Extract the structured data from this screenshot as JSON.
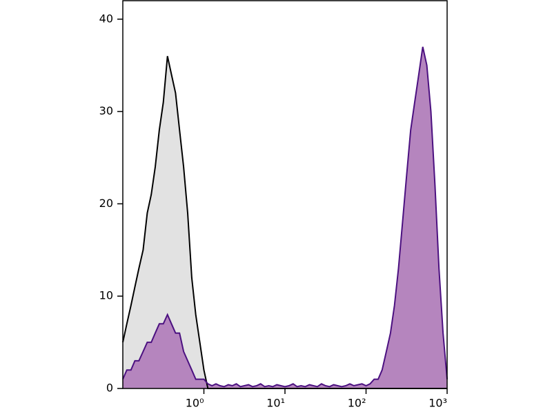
{
  "chart_data": {
    "type": "histogram-line",
    "xscale": "log",
    "xlim": [
      0.1,
      1000
    ],
    "ylim": [
      0,
      42
    ],
    "yticks": [
      0,
      10,
      20,
      30,
      40
    ],
    "xticks": [
      {
        "value": 1,
        "label": "10⁰"
      },
      {
        "value": 10,
        "label": "10¹"
      },
      {
        "value": 100,
        "label": "10²"
      },
      {
        "value": 1000,
        "label": "10³"
      }
    ],
    "x": [
      0.1,
      0.112,
      0.126,
      0.141,
      0.158,
      0.178,
      0.2,
      0.224,
      0.251,
      0.282,
      0.316,
      0.355,
      0.398,
      0.447,
      0.501,
      0.562,
      0.631,
      0.708,
      0.794,
      0.891,
      1,
      1.12,
      1.26,
      1.41,
      1.58,
      1.78,
      2,
      2.24,
      2.51,
      2.82,
      3.16,
      3.55,
      3.98,
      4.47,
      5.01,
      5.62,
      6.31,
      7.08,
      7.94,
      8.91,
      10,
      11.2,
      12.6,
      14.1,
      15.8,
      17.8,
      20,
      22.4,
      25.1,
      28.2,
      31.6,
      35.5,
      39.8,
      44.7,
      50.1,
      56.2,
      63.1,
      70.8,
      79.4,
      89.1,
      100,
      112,
      126,
      141,
      158,
      178,
      200,
      224,
      251,
      282,
      316,
      355,
      398,
      447,
      501,
      562,
      631,
      708,
      794,
      891,
      1000
    ],
    "series": [
      {
        "color": "#000000",
        "fill": "#e2e2e2",
        "values": [
          5,
          7,
          9,
          11,
          13,
          15,
          19,
          21,
          24,
          28,
          31,
          36,
          34,
          32,
          28,
          24,
          19,
          12,
          8,
          5,
          2,
          0,
          0,
          0,
          0,
          0,
          0,
          0,
          0,
          0,
          0,
          0,
          0,
          0,
          0,
          0,
          0,
          0,
          0,
          0,
          0,
          0,
          0,
          0,
          0,
          0,
          0,
          0,
          0,
          0,
          0,
          0,
          0,
          0,
          0,
          0,
          0,
          0,
          0,
          0,
          0,
          0,
          0,
          0,
          0,
          0,
          0,
          0,
          0,
          0,
          0,
          0,
          0,
          0,
          0,
          0,
          0,
          0,
          0,
          0,
          0
        ]
      },
      {
        "color": "#4b1080",
        "fill": "#b585be",
        "values": [
          1,
          2,
          2,
          3,
          3,
          4,
          5,
          5,
          6,
          7,
          7,
          8,
          7,
          6,
          6,
          4,
          3,
          2,
          1,
          1,
          1,
          0.5,
          0.3,
          0.5,
          0.3,
          0.2,
          0.4,
          0.3,
          0.5,
          0.2,
          0.3,
          0.4,
          0.2,
          0.3,
          0.5,
          0.2,
          0.3,
          0.2,
          0.4,
          0.3,
          0.2,
          0.3,
          0.5,
          0.2,
          0.3,
          0.2,
          0.4,
          0.3,
          0.2,
          0.5,
          0.3,
          0.2,
          0.4,
          0.3,
          0.2,
          0.3,
          0.5,
          0.3,
          0.4,
          0.5,
          0.3,
          0.5,
          1,
          1,
          2,
          4,
          6,
          9,
          13,
          18,
          23,
          28,
          31,
          34,
          37,
          35,
          30,
          22,
          13,
          6,
          1
        ]
      }
    ]
  }
}
